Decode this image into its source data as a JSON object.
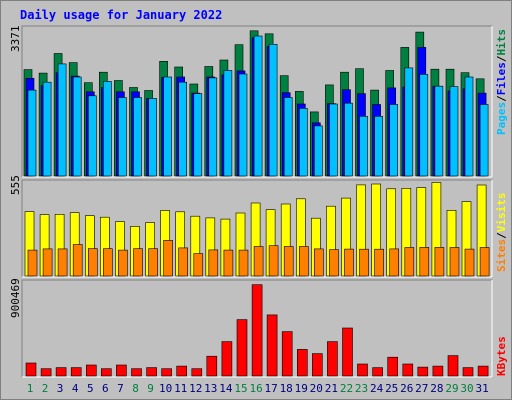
{
  "title": "Daily usage for January 2022",
  "colors": {
    "hits": "#008040",
    "files": "#0000ff",
    "pages": "#00c0ff",
    "visits": "#ffff00",
    "sites": "#ff8000",
    "kbytes": "#ff0000",
    "weekend": "#008040",
    "weekday": "#000080",
    "panel": "#c0c0c0"
  },
  "chart_data": [
    {
      "type": "bar",
      "title": "Daily usage for January 2022",
      "panel": "hits-files-pages",
      "scale_max_label": "3371",
      "ylim": [
        0,
        3371
      ],
      "legend": [
        "Pages",
        "/",
        "Files",
        "/",
        "Hits"
      ],
      "categories": [
        "1",
        "2",
        "3",
        "4",
        "5",
        "6",
        "7",
        "8",
        "9",
        "10",
        "11",
        "12",
        "13",
        "14",
        "15",
        "16",
        "17",
        "18",
        "19",
        "20",
        "21",
        "22",
        "23",
        "24",
        "25",
        "26",
        "27",
        "28",
        "29",
        "30",
        "31"
      ],
      "series": [
        {
          "name": "Hits",
          "values": [
            2440,
            2360,
            2810,
            2600,
            2140,
            2380,
            2190,
            2030,
            1960,
            2630,
            2500,
            2110,
            2510,
            2660,
            3010,
            3330,
            3260,
            2300,
            1940,
            1470,
            2090,
            2380,
            2460,
            1970,
            2420,
            2950,
            3300,
            2450,
            2450,
            2370,
            2230
          ]
        },
        {
          "name": "Files",
          "values": [
            2240,
            2070,
            2370,
            2290,
            1930,
            2030,
            1930,
            1930,
            1780,
            2260,
            2270,
            1900,
            2270,
            2320,
            2410,
            3170,
            2970,
            1910,
            1650,
            1220,
            1660,
            1980,
            1890,
            1640,
            2020,
            2040,
            2950,
            2060,
            1950,
            2000,
            1900
          ]
        },
        {
          "name": "Pages",
          "values": [
            1970,
            2150,
            2570,
            2270,
            1840,
            2170,
            1800,
            1800,
            1780,
            2270,
            2150,
            1890,
            2250,
            2420,
            2340,
            3210,
            3020,
            1800,
            1550,
            1150,
            1650,
            1670,
            1370,
            1370,
            1640,
            2480,
            2330,
            2060,
            2050,
            2270,
            1640
          ]
        }
      ]
    },
    {
      "type": "bar",
      "panel": "visits-sites",
      "scale_max_label": "555",
      "ylim": [
        0,
        555
      ],
      "legend": [
        "Sites",
        "/",
        "Visits"
      ],
      "categories": [
        "1",
        "2",
        "3",
        "4",
        "5",
        "6",
        "7",
        "8",
        "9",
        "10",
        "11",
        "12",
        "13",
        "14",
        "15",
        "16",
        "17",
        "18",
        "19",
        "20",
        "21",
        "22",
        "23",
        "24",
        "25",
        "26",
        "27",
        "28",
        "29",
        "30",
        "31"
      ],
      "series": [
        {
          "name": "Visits",
          "values": [
            380,
            362,
            364,
            374,
            356,
            347,
            321,
            293,
            315,
            387,
            379,
            353,
            343,
            336,
            372,
            431,
            392,
            425,
            456,
            341,
            412,
            460,
            538,
            543,
            515,
            518,
            522,
            552,
            388,
            439,
            537
          ]
        },
        {
          "name": "Sites",
          "values": [
            153,
            160,
            160,
            186,
            162,
            161,
            153,
            161,
            161,
            210,
            166,
            132,
            154,
            153,
            153,
            174,
            179,
            174,
            174,
            160,
            156,
            159,
            158,
            158,
            160,
            168,
            169,
            169,
            168,
            159,
            168
          ]
        }
      ]
    },
    {
      "type": "bar",
      "panel": "kbytes",
      "scale_max_label": "900469",
      "ylim": [
        0,
        900469
      ],
      "legend": [
        "KBytes"
      ],
      "categories": [
        "1",
        "2",
        "3",
        "4",
        "5",
        "6",
        "7",
        "8",
        "9",
        "10",
        "11",
        "12",
        "13",
        "14",
        "15",
        "16",
        "17",
        "18",
        "19",
        "20",
        "21",
        "22",
        "23",
        "24",
        "25",
        "26",
        "27",
        "28",
        "29",
        "30",
        "31"
      ],
      "series": [
        {
          "name": "KBytes",
          "values": [
            125000,
            70000,
            80000,
            80000,
            105000,
            70000,
            105000,
            70000,
            80000,
            70000,
            95000,
            70000,
            190000,
            330000,
            540000,
            875000,
            585000,
            425000,
            255000,
            215000,
            330000,
            460000,
            115000,
            80000,
            180000,
            115000,
            85000,
            95000,
            195000,
            80000,
            95000
          ]
        }
      ]
    }
  ]
}
